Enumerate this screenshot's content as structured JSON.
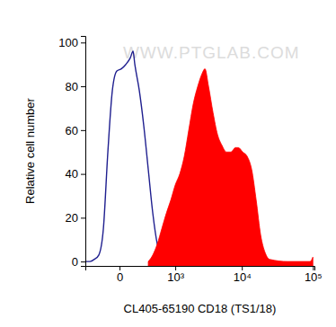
{
  "chart_data": {
    "type": "line",
    "x_label": "CL405-65190 CD18 (TS1/18)",
    "y_label": "Relative cell number",
    "annotations": [
      "WWW.PTGLAB.COM"
    ],
    "log": "x",
    "xlim": [
      -400,
      105000
    ],
    "xticks": [
      0,
      {
        "value": 1000,
        "label": "10³"
      },
      {
        "value": 10000,
        "label": "10⁴"
      },
      {
        "value": 100000,
        "label": "10⁵"
      }
    ],
    "ylim": [
      -2,
      103
    ],
    "yticks": [
      0,
      20,
      40,
      60,
      80,
      100
    ],
    "series": [
      {
        "type": "line",
        "color": "#1f1f8f",
        "x": [
          -400,
          -319,
          -249,
          -189,
          -136,
          -91,
          -52,
          -18,
          12,
          45,
          83,
          109,
          127,
          178,
          236,
          304,
          383,
          473,
          578,
          699,
          838
        ],
        "values": [
          0,
          0,
          1,
          3,
          15,
          50,
          78,
          87,
          88,
          90,
          93,
          96,
          90,
          78,
          62,
          42,
          22,
          8,
          2,
          0,
          0
        ]
      },
      {
        "type": "area",
        "color": "#ff0000",
        "x": [
          304,
          383,
          473,
          578,
          699,
          838,
          1000,
          1186,
          1402,
          1650,
          1940,
          2272,
          2656,
          2916,
          3296,
          3840,
          4468,
          5194,
          6032,
          7000,
          8120,
          8880,
          10300,
          11920,
          13800,
          15980,
          18500,
          21400,
          24760,
          44300,
          91400,
          99800
        ],
        "values": [
          0,
          3,
          8,
          15,
          22,
          28,
          35,
          40,
          48,
          60,
          72,
          80,
          86,
          88,
          80,
          68,
          58,
          53,
          50,
          50,
          52,
          52,
          50,
          48,
          42,
          28,
          12,
          4,
          1,
          0,
          0,
          2
        ]
      }
    ]
  }
}
